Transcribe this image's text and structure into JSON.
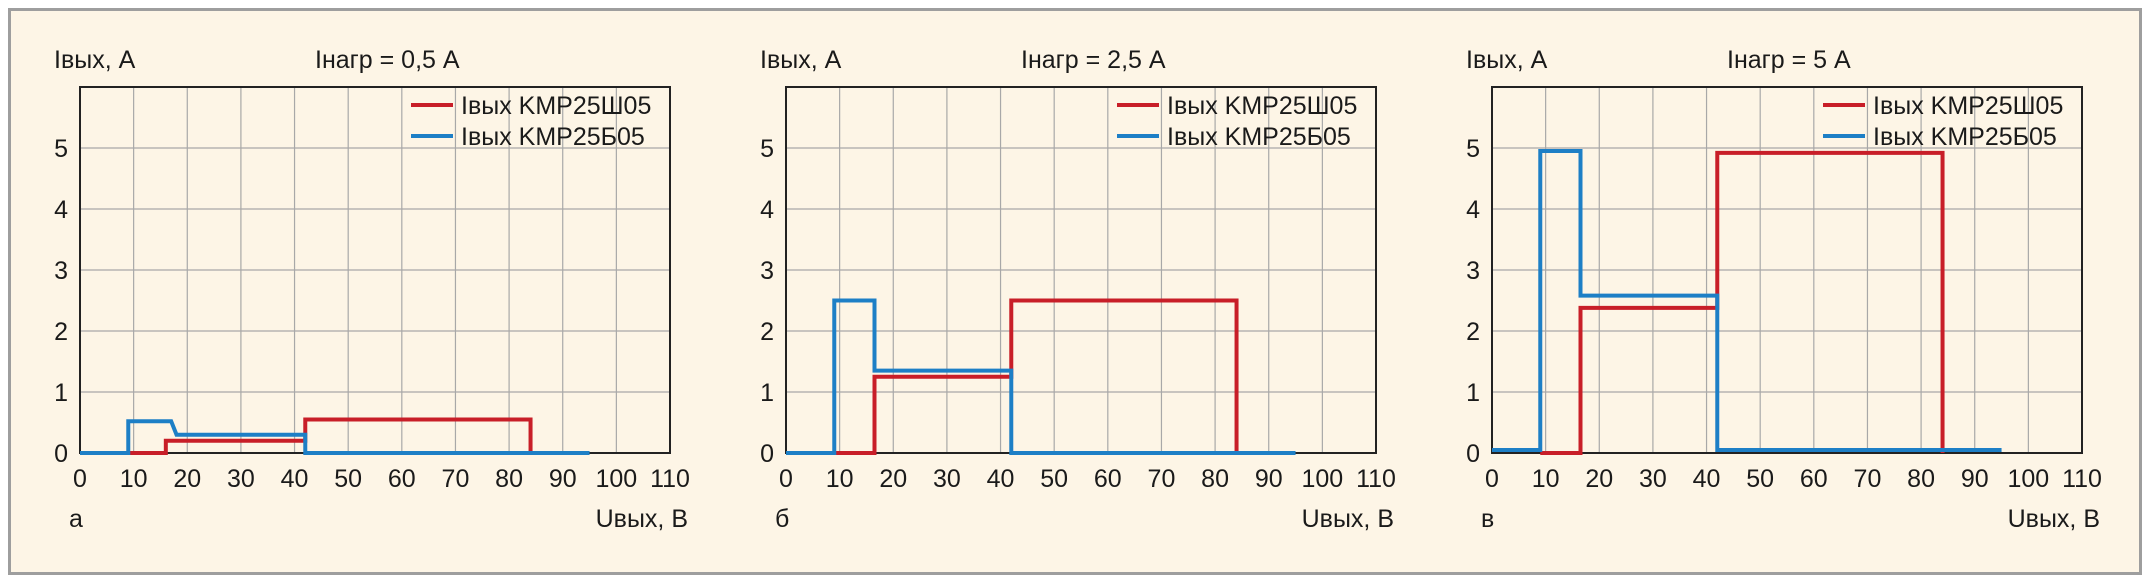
{
  "colors": {
    "background": "#fdf5e6",
    "border": "#9e9e9e",
    "grid": "#a8a8a8",
    "axis": "#222222",
    "series_red": "#c81e28",
    "series_blue": "#1d7fc6"
  },
  "chart_data": [
    {
      "type": "line",
      "panel_label": "а",
      "title": "Iнагр = 0,5 А",
      "ylabel": "Iвых, А",
      "xlabel": "Uвых, В",
      "xlim": [
        0,
        110
      ],
      "ylim": [
        0,
        6
      ],
      "xticks": [
        0,
        10,
        20,
        30,
        40,
        50,
        60,
        70,
        80,
        90,
        100,
        110
      ],
      "yticks": [
        0,
        1,
        2,
        3,
        4,
        5
      ],
      "grid": true,
      "legend_position": "top-right",
      "series": [
        {
          "name": "Iвых KMP25Ш05",
          "color": "#c81e28",
          "x": [
            9,
            16,
            16,
            42,
            42,
            84,
            84
          ],
          "y": [
            0,
            0,
            0.2,
            0.2,
            0.55,
            0.55,
            0
          ]
        },
        {
          "name": "Iвых KMP25Б05",
          "color": "#1d7fc6",
          "x": [
            0,
            9,
            9,
            17,
            18,
            42,
            42,
            95
          ],
          "y": [
            0,
            0,
            0.52,
            0.52,
            0.3,
            0.3,
            0,
            0
          ]
        }
      ]
    },
    {
      "type": "line",
      "panel_label": "б",
      "title": "Iнагр = 2,5 А",
      "ylabel": "Iвых, А",
      "xlabel": "Uвых, В",
      "xlim": [
        0,
        110
      ],
      "ylim": [
        0,
        6
      ],
      "xticks": [
        0,
        10,
        20,
        30,
        40,
        50,
        60,
        70,
        80,
        90,
        100,
        110
      ],
      "yticks": [
        0,
        1,
        2,
        3,
        4,
        5
      ],
      "grid": true,
      "legend_position": "top-right",
      "series": [
        {
          "name": "Iвых KMP25Ш05",
          "color": "#c81e28",
          "x": [
            9,
            16.5,
            16.5,
            42,
            42,
            84,
            84
          ],
          "y": [
            0,
            0,
            1.25,
            1.25,
            2.5,
            2.5,
            0
          ]
        },
        {
          "name": "Iвых KMP25Б05",
          "color": "#1d7fc6",
          "x": [
            0,
            9,
            9,
            16.5,
            16.5,
            42,
            42,
            95
          ],
          "y": [
            0,
            0,
            2.5,
            2.5,
            1.35,
            1.35,
            0,
            0
          ]
        }
      ]
    },
    {
      "type": "line",
      "panel_label": "в",
      "title": "Iнагр = 5 А",
      "ylabel": "Iвых, А",
      "xlabel": "Uвых, В",
      "xlim": [
        0,
        110
      ],
      "ylim": [
        0,
        6
      ],
      "xticks": [
        0,
        10,
        20,
        30,
        40,
        50,
        60,
        70,
        80,
        90,
        100,
        110
      ],
      "yticks": [
        0,
        1,
        2,
        3,
        4,
        5
      ],
      "grid": true,
      "legend_position": "top-right",
      "series": [
        {
          "name": "Iвых KMP25Ш05",
          "color": "#c81e28",
          "x": [
            9,
            16.5,
            16.5,
            42,
            42,
            84,
            84
          ],
          "y": [
            0,
            0,
            2.38,
            2.38,
            4.92,
            4.92,
            0
          ]
        },
        {
          "name": "Iвых KMP25Б05",
          "color": "#1d7fc6",
          "x": [
            0,
            9,
            9,
            16.5,
            16.5,
            42,
            42,
            95
          ],
          "y": [
            0.05,
            0.05,
            4.95,
            4.95,
            2.58,
            2.58,
            0.05,
            0.05
          ]
        }
      ]
    }
  ]
}
